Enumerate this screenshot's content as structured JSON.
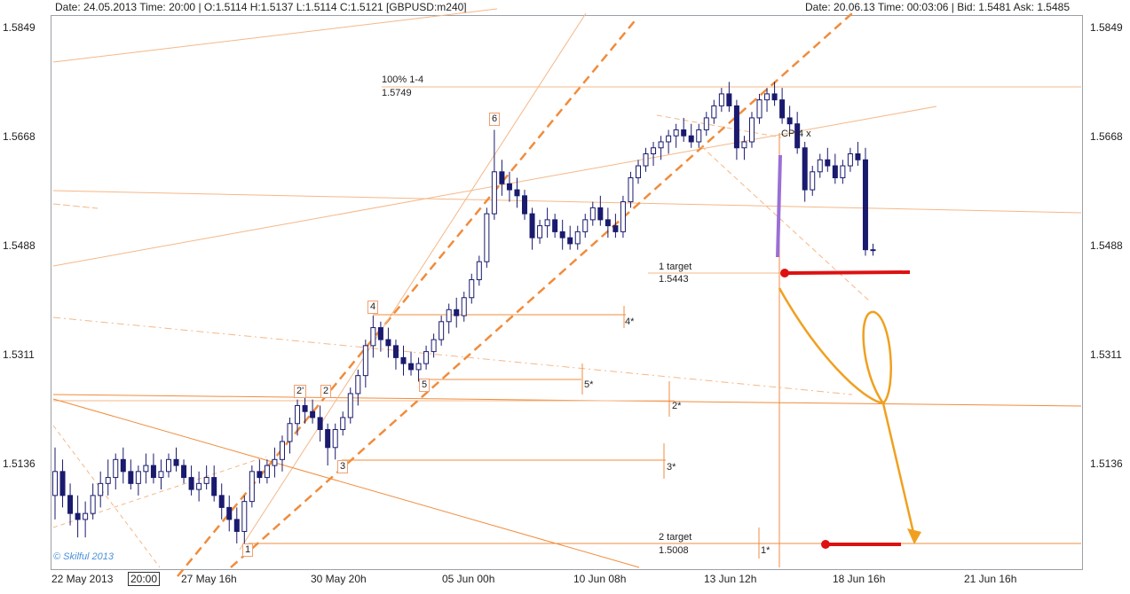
{
  "header": {
    "left": "Date: 24.05.2013  Time: 20:00  | O:1.5114 H:1.5137 L:1.5114 C:1.5121   [GBPUSD:m240]",
    "right": "Date: 20.06.13  Time: 00:03:06  | Bid: 1.5481  Ask: 1.5485"
  },
  "axis": {
    "y_labels": [
      "1.5849",
      "1.5668",
      "1.5488",
      "1.5311",
      "1.5136"
    ],
    "x_labels": [
      "22 May 2013",
      "20:00",
      "27 May 16h",
      "30 May 20h",
      "05 Jun 00h",
      "10 Jun 08h",
      "13 Jun 12h",
      "18 Jun 16h",
      "21 Jun 16h"
    ]
  },
  "watermark": "© Skilful 2013",
  "annotations": {
    "fib100_name": "100% 1-4",
    "fib100_value": "1.5749",
    "target1_name": "1 target",
    "target1_value": "1.5443",
    "target2_name": "2 target",
    "target2_value": "1.5008",
    "cp_label": "CP-4 x",
    "wave1": "1",
    "wave2a": "2'",
    "wave2b": "2",
    "wave3": "3",
    "wave4": "4",
    "wave5": "5",
    "wave6": "6",
    "proj4": "4*",
    "proj5": "5*",
    "proj2": "2*",
    "proj3": "3*",
    "proj1": "1*"
  },
  "colors": {
    "bull": "#ffffff",
    "bear": "#1a1a6e",
    "trend": "#f08c3c",
    "trend_light": "#f5b787",
    "marker_red": "#dd1111",
    "purple": "#9a6fd6"
  },
  "chart_data": {
    "type": "candlestick",
    "symbol": "GBPUSD",
    "timeframe": "m240",
    "ylim": [
      1.496,
      1.588
    ],
    "candles": [
      [
        1.508,
        1.516,
        1.504,
        1.512
      ],
      [
        1.512,
        1.514,
        1.506,
        1.508
      ],
      [
        1.508,
        1.51,
        1.503,
        1.505
      ],
      [
        1.505,
        1.508,
        1.501,
        1.504
      ],
      [
        1.504,
        1.507,
        1.501,
        1.505
      ],
      [
        1.505,
        1.51,
        1.504,
        1.508
      ],
      [
        1.508,
        1.512,
        1.506,
        1.51
      ],
      [
        1.51,
        1.514,
        1.508,
        1.511
      ],
      [
        1.511,
        1.515,
        1.509,
        1.514
      ],
      [
        1.514,
        1.516,
        1.51,
        1.512
      ],
      [
        1.512,
        1.514,
        1.509,
        1.51
      ],
      [
        1.51,
        1.513,
        1.508,
        1.512
      ],
      [
        1.512,
        1.515,
        1.51,
        1.513
      ],
      [
        1.513,
        1.515,
        1.51,
        1.511
      ],
      [
        1.511,
        1.514,
        1.509,
        1.512
      ],
      [
        1.512,
        1.515,
        1.511,
        1.514
      ],
      [
        1.514,
        1.516,
        1.512,
        1.513
      ],
      [
        1.513,
        1.514,
        1.51,
        1.511
      ],
      [
        1.511,
        1.513,
        1.508,
        1.509
      ],
      [
        1.509,
        1.512,
        1.507,
        1.51
      ],
      [
        1.51,
        1.513,
        1.509,
        1.511
      ],
      [
        1.511,
        1.513,
        1.507,
        1.508
      ],
      [
        1.508,
        1.51,
        1.504,
        1.506
      ],
      [
        1.506,
        1.508,
        1.502,
        1.504
      ],
      [
        1.504,
        1.506,
        1.5,
        1.502
      ],
      [
        1.502,
        1.508,
        1.5,
        1.507
      ],
      [
        1.507,
        1.513,
        1.506,
        1.512
      ],
      [
        1.512,
        1.514,
        1.51,
        1.511
      ],
      [
        1.511,
        1.514,
        1.51,
        1.513
      ],
      [
        1.513,
        1.516,
        1.511,
        1.514
      ],
      [
        1.514,
        1.518,
        1.512,
        1.517
      ],
      [
        1.517,
        1.521,
        1.515,
        1.52
      ],
      [
        1.52,
        1.524,
        1.518,
        1.523
      ],
      [
        1.523,
        1.525,
        1.52,
        1.522
      ],
      [
        1.522,
        1.524,
        1.52,
        1.521
      ],
      [
        1.521,
        1.523,
        1.517,
        1.519
      ],
      [
        1.519,
        1.52,
        1.513,
        1.516
      ],
      [
        1.516,
        1.52,
        1.514,
        1.519
      ],
      [
        1.519,
        1.522,
        1.518,
        1.521
      ],
      [
        1.521,
        1.526,
        1.52,
        1.525
      ],
      [
        1.525,
        1.529,
        1.523,
        1.528
      ],
      [
        1.528,
        1.534,
        1.526,
        1.533
      ],
      [
        1.533,
        1.538,
        1.531,
        1.536
      ],
      [
        1.536,
        1.537,
        1.532,
        1.534
      ],
      [
        1.534,
        1.536,
        1.531,
        1.533
      ],
      [
        1.533,
        1.534,
        1.529,
        1.531
      ],
      [
        1.531,
        1.533,
        1.528,
        1.53
      ],
      [
        1.53,
        1.532,
        1.528,
        1.529
      ],
      [
        1.529,
        1.531,
        1.527,
        1.53
      ],
      [
        1.53,
        1.533,
        1.529,
        1.532
      ],
      [
        1.532,
        1.535,
        1.531,
        1.534
      ],
      [
        1.534,
        1.538,
        1.533,
        1.537
      ],
      [
        1.537,
        1.54,
        1.535,
        1.539
      ],
      [
        1.539,
        1.541,
        1.536,
        1.538
      ],
      [
        1.538,
        1.542,
        1.537,
        1.541
      ],
      [
        1.541,
        1.545,
        1.54,
        1.544
      ],
      [
        1.544,
        1.548,
        1.543,
        1.547
      ],
      [
        1.547,
        1.556,
        1.546,
        1.555
      ],
      [
        1.555,
        1.569,
        1.554,
        1.562
      ],
      [
        1.562,
        1.564,
        1.558,
        1.56
      ],
      [
        1.56,
        1.562,
        1.557,
        1.559
      ],
      [
        1.559,
        1.561,
        1.556,
        1.558
      ],
      [
        1.558,
        1.559,
        1.554,
        1.555
      ],
      [
        1.555,
        1.556,
        1.549,
        1.551
      ],
      [
        1.551,
        1.554,
        1.55,
        1.553
      ],
      [
        1.553,
        1.556,
        1.551,
        1.554
      ],
      [
        1.554,
        1.555,
        1.551,
        1.552
      ],
      [
        1.552,
        1.554,
        1.549,
        1.551
      ],
      [
        1.551,
        1.553,
        1.549,
        1.55
      ],
      [
        1.55,
        1.553,
        1.549,
        1.552
      ],
      [
        1.552,
        1.555,
        1.551,
        1.554
      ],
      [
        1.554,
        1.557,
        1.553,
        1.556
      ],
      [
        1.556,
        1.558,
        1.553,
        1.554
      ],
      [
        1.554,
        1.556,
        1.551,
        1.553
      ],
      [
        1.553,
        1.555,
        1.551,
        1.552
      ],
      [
        1.552,
        1.558,
        1.551,
        1.557
      ],
      [
        1.557,
        1.562,
        1.556,
        1.561
      ],
      [
        1.561,
        1.564,
        1.56,
        1.563
      ],
      [
        1.563,
        1.566,
        1.562,
        1.565
      ],
      [
        1.565,
        1.567,
        1.563,
        1.566
      ],
      [
        1.566,
        1.568,
        1.564,
        1.567
      ],
      [
        1.567,
        1.569,
        1.565,
        1.568
      ],
      [
        1.568,
        1.57,
        1.566,
        1.569
      ],
      [
        1.569,
        1.571,
        1.567,
        1.568
      ],
      [
        1.568,
        1.57,
        1.566,
        1.567
      ],
      [
        1.567,
        1.57,
        1.566,
        1.569
      ],
      [
        1.569,
        1.572,
        1.568,
        1.571
      ],
      [
        1.571,
        1.574,
        1.57,
        1.573
      ],
      [
        1.573,
        1.576,
        1.572,
        1.575
      ],
      [
        1.575,
        1.577,
        1.572,
        1.573
      ],
      [
        1.573,
        1.574,
        1.564,
        1.566
      ],
      [
        1.566,
        1.568,
        1.564,
        1.567
      ],
      [
        1.567,
        1.572,
        1.566,
        1.571
      ],
      [
        1.571,
        1.575,
        1.57,
        1.574
      ],
      [
        1.574,
        1.576,
        1.572,
        1.575
      ],
      [
        1.575,
        1.577,
        1.573,
        1.574
      ],
      [
        1.574,
        1.576,
        1.57,
        1.571
      ],
      [
        1.571,
        1.573,
        1.569,
        1.57
      ],
      [
        1.57,
        1.572,
        1.565,
        1.566
      ],
      [
        1.566,
        1.567,
        1.557,
        1.559
      ],
      [
        1.559,
        1.563,
        1.558,
        1.562
      ],
      [
        1.562,
        1.565,
        1.561,
        1.564
      ],
      [
        1.564,
        1.566,
        1.562,
        1.563
      ],
      [
        1.563,
        1.565,
        1.56,
        1.561
      ],
      [
        1.561,
        1.564,
        1.56,
        1.563
      ],
      [
        1.563,
        1.566,
        1.562,
        1.565
      ],
      [
        1.565,
        1.567,
        1.563,
        1.564
      ],
      [
        1.564,
        1.566,
        1.548,
        1.549
      ],
      [
        1.549,
        1.55,
        1.548,
        1.549
      ]
    ],
    "x_tick_labels": [
      "22 May 2013",
      "20:00",
      "27 May 16h",
      "30 May 20h",
      "05 Jun 00h",
      "10 Jun 08h",
      "13 Jun 12h",
      "18 Jun 16h",
      "21 Jun 16h"
    ],
    "y_tick_labels": [
      "1.5849",
      "1.5668",
      "1.5488",
      "1.5311",
      "1.5136"
    ],
    "levels": [
      {
        "label": "100% 1-4",
        "value": 1.5749
      },
      {
        "label": "1 target",
        "value": 1.5443
      },
      {
        "label": "2 target",
        "value": 1.5008
      }
    ],
    "grid": false
  }
}
